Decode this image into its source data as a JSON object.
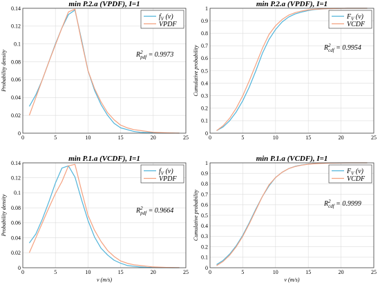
{
  "chart_data": [
    {
      "type": "line",
      "title": "min P.2.a (VPDF), I=1",
      "xlabel": "",
      "ylabel": "Probability density",
      "xlim": [
        0,
        25
      ],
      "ylim": [
        0,
        0.14
      ],
      "xticks": [
        0,
        5,
        10,
        15,
        20,
        25
      ],
      "yticks": [
        0,
        0.02,
        0.04,
        0.06,
        0.08,
        0.1,
        0.12,
        0.14
      ],
      "grid": true,
      "legend_position": "top-right",
      "r2": {
        "main": "R",
        "sup": "2",
        "sub": "pdf",
        "value": " = 0.9973"
      },
      "legend": [
        {
          "main": "f",
          "sub": "V",
          "rest": " (v)"
        },
        {
          "main": "VPDF",
          "sub": "",
          "rest": ""
        }
      ],
      "series": [
        {
          "name": "f_V (v)",
          "color": "#4fb3d9",
          "x": [
            1,
            2,
            3,
            4,
            5,
            6,
            7,
            8,
            9,
            10,
            11,
            12,
            13,
            14,
            15,
            16,
            17,
            18,
            19,
            20,
            21,
            22,
            23,
            24
          ],
          "y": [
            0.03,
            0.043,
            0.06,
            0.08,
            0.1,
            0.118,
            0.133,
            0.138,
            0.105,
            0.07,
            0.048,
            0.032,
            0.02,
            0.011,
            0.006,
            0.004,
            0.002,
            0.001,
            0.0007,
            0.0004,
            0.0002,
            0.0001,
            0.0001,
            0.0
          ]
        },
        {
          "name": "VPDF",
          "color": "#f4a07e",
          "x": [
            1,
            2,
            3,
            4,
            5,
            6,
            7,
            8,
            9,
            10,
            11,
            12,
            13,
            14,
            15,
            16,
            17,
            18,
            19,
            20,
            21,
            22,
            23,
            24
          ],
          "y": [
            0.02,
            0.04,
            0.06,
            0.08,
            0.099,
            0.118,
            0.136,
            0.139,
            0.103,
            0.07,
            0.05,
            0.035,
            0.023,
            0.015,
            0.009,
            0.006,
            0.004,
            0.003,
            0.002,
            0.001,
            0.0007,
            0.0004,
            0.0002,
            0.0001
          ]
        }
      ]
    },
    {
      "type": "line",
      "title": "min P.2.a (VPDF), I=1",
      "xlabel": "",
      "ylabel": "Cumulative probability",
      "xlim": [
        0,
        25
      ],
      "ylim": [
        0,
        1
      ],
      "xticks": [
        0,
        5,
        10,
        15,
        20,
        25
      ],
      "yticks": [
        0,
        0.1,
        0.2,
        0.3,
        0.4,
        0.5,
        0.6,
        0.7,
        0.8,
        0.9,
        1
      ],
      "grid": true,
      "legend_position": "top-right",
      "r2": {
        "main": "R",
        "sup": "2",
        "sub": "cdf",
        "value": " = 0.9954"
      },
      "legend": [
        {
          "main": "F",
          "sub": "V",
          "rest": " (v)"
        },
        {
          "main": "VCDF",
          "sub": "",
          "rest": ""
        }
      ],
      "series": [
        {
          "name": "F_V (v)",
          "color": "#4fb3d9",
          "x": [
            1,
            2,
            3,
            4,
            5,
            6,
            7,
            8,
            9,
            10,
            11,
            12,
            13,
            14,
            15,
            16,
            17,
            18,
            19,
            20,
            21,
            22,
            23,
            24
          ],
          "y": [
            0.02,
            0.05,
            0.1,
            0.17,
            0.26,
            0.37,
            0.5,
            0.64,
            0.75,
            0.83,
            0.89,
            0.93,
            0.955,
            0.97,
            0.982,
            0.99,
            0.994,
            0.997,
            0.998,
            0.999,
            1,
            1,
            1,
            1
          ]
        },
        {
          "name": "VCDF",
          "color": "#f4a07e",
          "x": [
            1,
            2,
            3,
            4,
            5,
            6,
            7,
            8,
            9,
            10,
            11,
            12,
            13,
            14,
            15,
            16,
            17,
            18,
            19,
            20,
            21,
            22,
            23,
            24
          ],
          "y": [
            0.02,
            0.06,
            0.12,
            0.2,
            0.3,
            0.42,
            0.55,
            0.68,
            0.79,
            0.86,
            0.91,
            0.945,
            0.965,
            0.978,
            0.987,
            0.992,
            0.995,
            0.997,
            0.998,
            0.999,
            1,
            1,
            1,
            1
          ]
        }
      ]
    },
    {
      "type": "line",
      "title": "min P.1.a (VCDF), I=1",
      "xlabel": "v (m/s)",
      "ylabel": "Probability density",
      "xlim": [
        0,
        25
      ],
      "ylim": [
        0,
        0.14
      ],
      "xticks": [
        0,
        5,
        10,
        15,
        20,
        25
      ],
      "yticks": [
        0,
        0.02,
        0.04,
        0.06,
        0.08,
        0.1,
        0.12,
        0.14
      ],
      "grid": true,
      "legend_position": "top-right",
      "r2": {
        "main": "R",
        "sup": "2",
        "sub": "pdf",
        "value": " = 0.9664"
      },
      "legend": [
        {
          "main": "f",
          "sub": "V",
          "rest": " (v)"
        },
        {
          "main": "VPDF",
          "sub": "",
          "rest": ""
        }
      ],
      "series": [
        {
          "name": "f_V (v)",
          "color": "#4fb3d9",
          "x": [
            1,
            2,
            3,
            4,
            5,
            6,
            7,
            8,
            9,
            10,
            11,
            12,
            13,
            14,
            15,
            16,
            17,
            18,
            19,
            20,
            21,
            22,
            23,
            24
          ],
          "y": [
            0.033,
            0.045,
            0.065,
            0.088,
            0.113,
            0.133,
            0.136,
            0.121,
            0.091,
            0.063,
            0.041,
            0.026,
            0.017,
            0.01,
            0.006,
            0.003,
            0.002,
            0.001,
            0.0005,
            0.0003,
            0.0001,
            0.0001,
            0.0,
            0.0
          ]
        },
        {
          "name": "VPDF",
          "color": "#f4a07e",
          "x": [
            1,
            2,
            3,
            4,
            5,
            6,
            7,
            8,
            9,
            10,
            11,
            12,
            13,
            14,
            15,
            16,
            17,
            18,
            19,
            20,
            21,
            22,
            23,
            24
          ],
          "y": [
            0.02,
            0.04,
            0.06,
            0.08,
            0.099,
            0.115,
            0.136,
            0.138,
            0.103,
            0.07,
            0.05,
            0.035,
            0.023,
            0.015,
            0.009,
            0.006,
            0.004,
            0.003,
            0.002,
            0.001,
            0.0007,
            0.0004,
            0.0002,
            0.0001
          ]
        }
      ]
    },
    {
      "type": "line",
      "title": "min P.1.a (VCDF), I=1",
      "xlabel": "v (m/s)",
      "ylabel": "Cumulative probability",
      "xlim": [
        0,
        25
      ],
      "ylim": [
        0,
        1
      ],
      "xticks": [
        0,
        5,
        10,
        15,
        20,
        25
      ],
      "yticks": [
        0,
        0.1,
        0.2,
        0.3,
        0.4,
        0.5,
        0.6,
        0.7,
        0.8,
        0.9,
        1
      ],
      "grid": true,
      "legend_position": "top-right",
      "r2": {
        "main": "R",
        "sup": "2",
        "sub": "cdf",
        "value": " = 0.9999"
      },
      "legend": [
        {
          "main": "F",
          "sub": "V",
          "rest": " (v)"
        },
        {
          "main": "VCDF",
          "sub": "",
          "rest": ""
        }
      ],
      "series": [
        {
          "name": "F_V (v)",
          "color": "#4fb3d9",
          "x": [
            1,
            2,
            3,
            4,
            5,
            6,
            7,
            8,
            9,
            10,
            11,
            12,
            13,
            14,
            15,
            16,
            17,
            18,
            19,
            20,
            21,
            22,
            23,
            24
          ],
          "y": [
            0.03,
            0.07,
            0.13,
            0.21,
            0.31,
            0.43,
            0.56,
            0.68,
            0.78,
            0.86,
            0.91,
            0.945,
            0.967,
            0.98,
            0.988,
            0.993,
            0.996,
            0.998,
            0.999,
            1,
            1,
            1,
            1,
            1
          ]
        },
        {
          "name": "VCDF",
          "color": "#f4a07e",
          "x": [
            1,
            2,
            3,
            4,
            5,
            6,
            7,
            8,
            9,
            10,
            11,
            12,
            13,
            14,
            15,
            16,
            17,
            18,
            19,
            20,
            21,
            22,
            23,
            24
          ],
          "y": [
            0.02,
            0.06,
            0.12,
            0.2,
            0.3,
            0.42,
            0.55,
            0.68,
            0.79,
            0.86,
            0.91,
            0.945,
            0.965,
            0.978,
            0.987,
            0.992,
            0.995,
            0.997,
            0.998,
            0.999,
            1,
            1,
            1,
            1
          ]
        }
      ]
    }
  ]
}
